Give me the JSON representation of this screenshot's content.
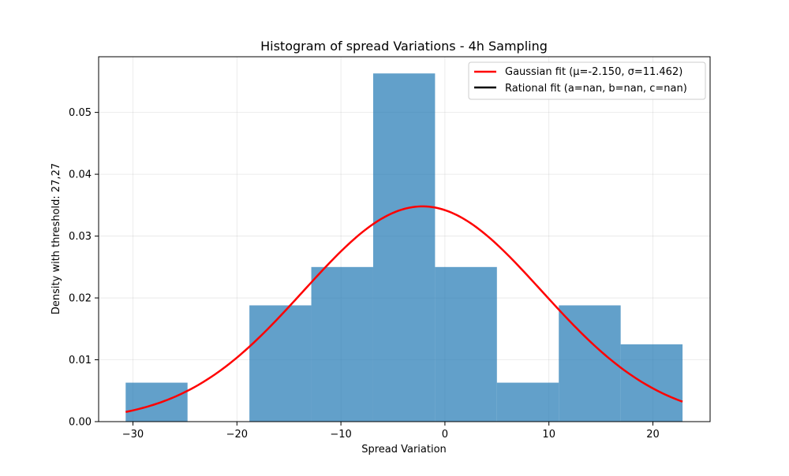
{
  "chart_data": {
    "type": "bar",
    "title": "Histogram of spread Variations - 4h Sampling",
    "xlabel": "Spread Variation",
    "ylabel": "Density with threshold: 27,27",
    "xlim": [
      -33.3,
      25.5
    ],
    "ylim": [
      0,
      0.059
    ],
    "grid": true,
    "legend_position": "top-right",
    "x_ticks": [
      -30,
      -20,
      -10,
      0,
      10,
      20
    ],
    "x_tick_labels": [
      "−30",
      "−20",
      "−10",
      "0",
      "10",
      "20"
    ],
    "y_ticks": [
      0,
      0.01,
      0.02,
      0.03,
      0.04,
      0.05
    ],
    "y_tick_labels": [
      "0.00",
      "0.01",
      "0.02",
      "0.03",
      "0.04",
      "0.05"
    ],
    "histogram": {
      "bin_edges": [
        -30.7,
        -24.75,
        -18.8,
        -12.85,
        -6.9,
        -0.95,
        5.0,
        10.95,
        16.9,
        22.85
      ],
      "densities": [
        0.0063,
        0.0,
        0.0188,
        0.025,
        0.0563,
        0.025,
        0.0063,
        0.0188,
        0.0125
      ],
      "color": "#1f77b4"
    },
    "series": [
      {
        "name": "Gaussian fit (μ=-2.150, σ=11.462)",
        "type": "line",
        "color": "#ff0000",
        "mu": -2.15,
        "sigma": 11.462,
        "x_range": [
          -30.7,
          22.85
        ]
      },
      {
        "name": "Rational fit (a=nan, b=nan, c=nan)",
        "type": "line",
        "color": "#000000"
      }
    ]
  }
}
